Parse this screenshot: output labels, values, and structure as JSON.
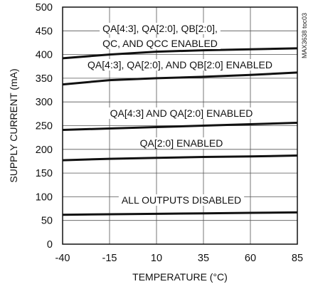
{
  "chart_data": {
    "type": "line",
    "xlabel": "TEMPERATURE (°C)",
    "ylabel": "SUPPLY CURRENT (mA)",
    "xlim": [
      -40,
      85
    ],
    "ylim": [
      0,
      500
    ],
    "xticks": [
      -40,
      -15,
      10,
      35,
      60,
      85
    ],
    "yticks": [
      0,
      50,
      100,
      150,
      200,
      250,
      300,
      350,
      400,
      450,
      500
    ],
    "grid": true,
    "watermark": "MAX3638 toc03",
    "series": [
      {
        "name": "QA[4:3], QA[2:0], QB[2:0], QC, AND QCC ENABLED",
        "label_lines": [
          "QA[4:3], QA[2:0], QB[2:0],",
          "QC, AND QCC ENABLED"
        ],
        "x": [
          -40,
          -15,
          10,
          35,
          60,
          85
        ],
        "values": [
          392,
          400,
          406,
          409,
          411,
          413
        ]
      },
      {
        "name": "QA[4:3], QA[2:0], AND QB[2:0] ENABLED",
        "label_lines": [
          "QA[4:3], QA[2:0], AND QB[2:0] ENABLED"
        ],
        "x": [
          -40,
          -15,
          10,
          35,
          60,
          85
        ],
        "values": [
          337,
          346,
          350,
          353,
          357,
          362
        ]
      },
      {
        "name": "QA[4:3] AND QA[2:0] ENABLED",
        "label_lines": [
          "QA[4:3] AND QA[2:0] ENABLED"
        ],
        "x": [
          -40,
          -15,
          10,
          35,
          60,
          85
        ],
        "values": [
          241,
          244,
          247,
          250,
          253,
          256
        ]
      },
      {
        "name": "QA[2:0] ENABLED",
        "label_lines": [
          "QA[2:0] ENABLED"
        ],
        "x": [
          -40,
          -15,
          10,
          35,
          60,
          85
        ],
        "values": [
          177,
          180,
          182,
          184,
          185,
          187
        ]
      },
      {
        "name": "ALL OUTPUTS DISABLED",
        "label_lines": [
          "ALL OUTPUTS DISABLED"
        ],
        "x": [
          -40,
          -15,
          10,
          35,
          60,
          85
        ],
        "values": [
          62,
          63,
          64,
          65,
          66,
          67
        ]
      }
    ]
  }
}
